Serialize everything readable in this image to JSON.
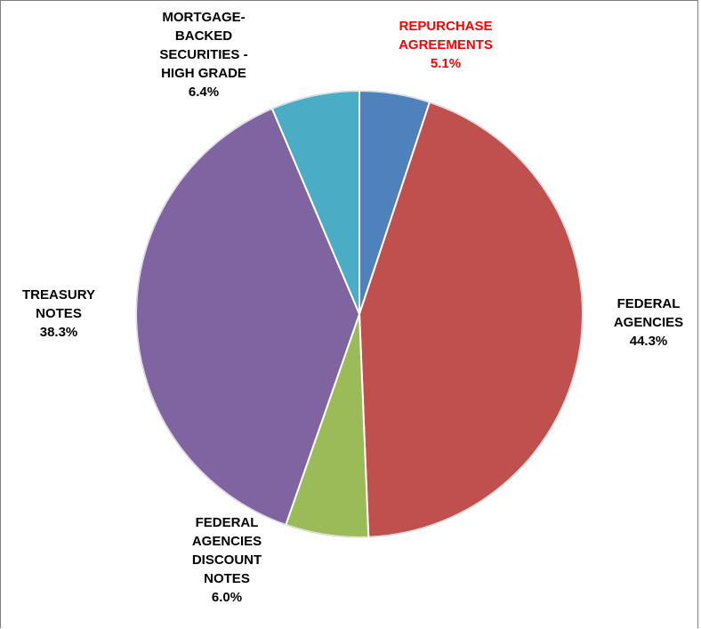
{
  "chart_data": {
    "type": "pie",
    "title": "",
    "start_angle_deg": 0,
    "direction": "clockwise",
    "slices": [
      {
        "label_lines": [
          "REPURCHASE",
          "AGREEMENTS"
        ],
        "value": 5.1,
        "value_label": "5.1%",
        "color": "#4f81bd",
        "label_color": "#ff0000"
      },
      {
        "label_lines": [
          "FEDERAL",
          "AGENCIES"
        ],
        "value": 44.3,
        "value_label": "44.3%",
        "color": "#c0504d",
        "label_color": "#000000"
      },
      {
        "label_lines": [
          "FEDERAL",
          "AGENCIES",
          "DISCOUNT",
          "NOTES"
        ],
        "value": 6.0,
        "value_label": "6.0%",
        "color": "#9bbb59",
        "label_color": "#000000"
      },
      {
        "label_lines": [
          "TREASURY",
          "NOTES"
        ],
        "value": 38.3,
        "value_label": "38.3%",
        "color": "#8064a2",
        "label_color": "#000000"
      },
      {
        "label_lines": [
          "MORTGAGE-",
          "BACKED",
          "SECURITIES -",
          "HIGH GRADE"
        ],
        "value": 6.4,
        "value_label": "6.4%",
        "color": "#4bacc6",
        "label_color": "#000000"
      }
    ]
  }
}
